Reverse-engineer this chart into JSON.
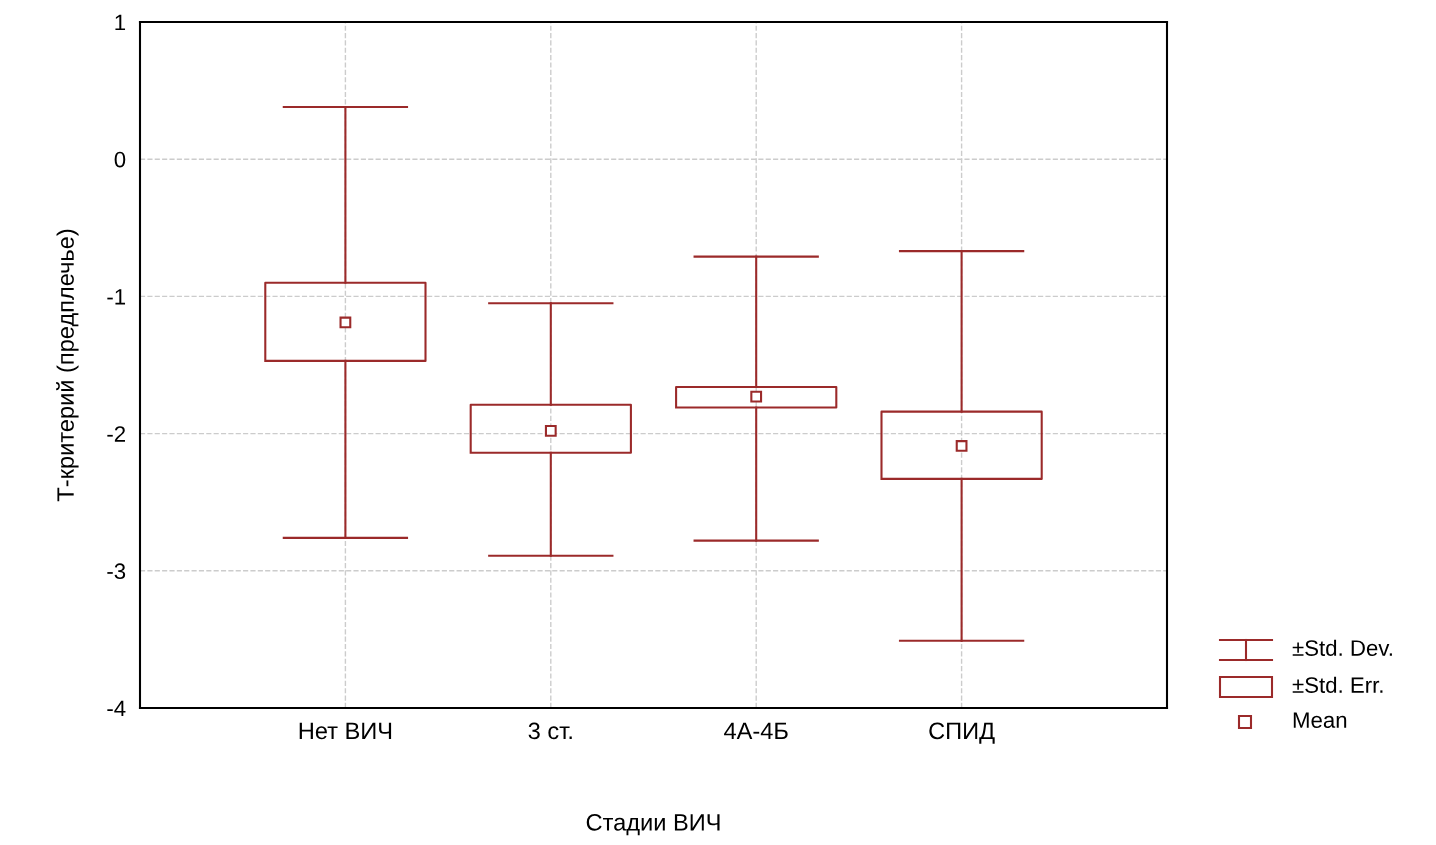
{
  "chart_data": {
    "type": "box",
    "xlabel": "Стадии ВИЧ",
    "ylabel": "Т-критерий (предплечье)",
    "categories": [
      "Нет ВИЧ",
      "3 ст.",
      "4А-4Б",
      "СПИД"
    ],
    "color": "#9b2a2a",
    "boxes": [
      {
        "low": -2.76,
        "q1": -1.47,
        "median": -1.19,
        "q3": -0.9,
        "high": 0.38
      },
      {
        "low": -2.89,
        "q1": -2.14,
        "median": -1.98,
        "q3": -1.79,
        "high": -1.05
      },
      {
        "low": -2.78,
        "q1": -1.81,
        "median": -1.73,
        "q3": -1.66,
        "high": -0.71
      },
      {
        "low": -3.51,
        "q1": -2.33,
        "median": -2.09,
        "q3": -1.84,
        "high": -0.67
      }
    ],
    "ylim": [
      -4,
      1
    ],
    "yticks": [
      -4,
      -3,
      -2,
      -1,
      0,
      1
    ],
    "grid": true,
    "annotations": [
      "±Std. Dev.",
      "±Std. Err.",
      "Mean"
    ]
  }
}
